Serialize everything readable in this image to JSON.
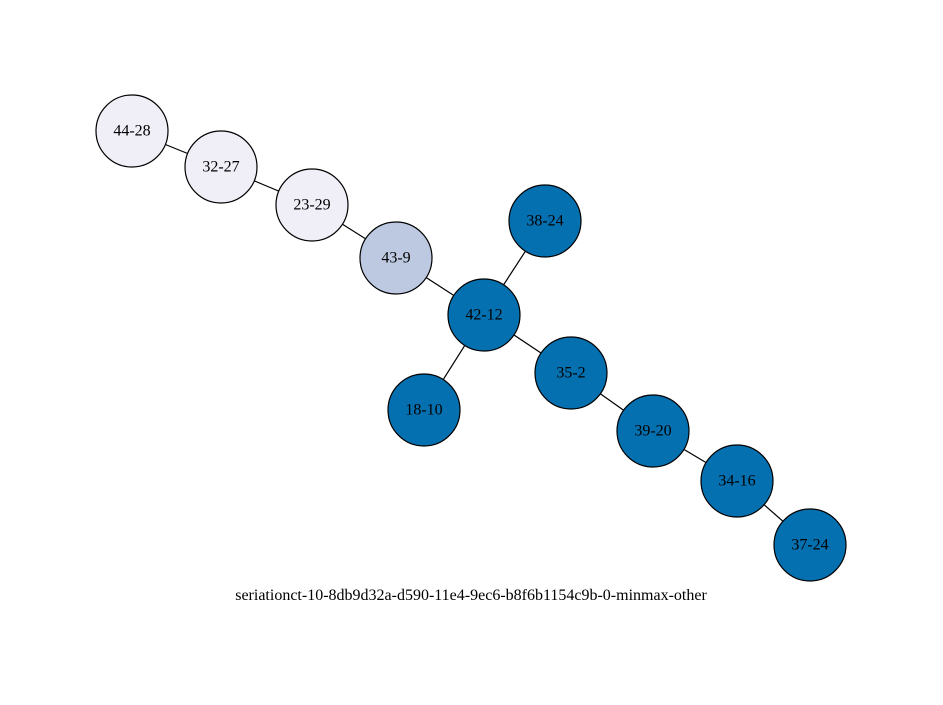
{
  "diagram": {
    "caption": "seriationct-10-8db9d32a-d590-11e4-9ec6-b8f6b1154c9b-0-minmax-other",
    "colors": {
      "light": "#f0eef6",
      "medium": "#bdc9e1",
      "dark": "#0570b0",
      "stroke": "#000000"
    },
    "nodes": [
      {
        "id": "44-28",
        "label": "44-28",
        "shade": "light"
      },
      {
        "id": "32-27",
        "label": "32-27",
        "shade": "light"
      },
      {
        "id": "23-29",
        "label": "23-29",
        "shade": "light"
      },
      {
        "id": "43-9",
        "label": "43-9",
        "shade": "medium"
      },
      {
        "id": "42-12",
        "label": "42-12",
        "shade": "dark"
      },
      {
        "id": "38-24",
        "label": "38-24",
        "shade": "dark"
      },
      {
        "id": "18-10",
        "label": "18-10",
        "shade": "dark"
      },
      {
        "id": "35-2",
        "label": "35-2",
        "shade": "dark"
      },
      {
        "id": "39-20",
        "label": "39-20",
        "shade": "dark"
      },
      {
        "id": "34-16",
        "label": "34-16",
        "shade": "dark"
      },
      {
        "id": "37-24",
        "label": "37-24",
        "shade": "dark"
      }
    ],
    "edges": [
      {
        "from": "44-28",
        "to": "32-27"
      },
      {
        "from": "32-27",
        "to": "23-29"
      },
      {
        "from": "23-29",
        "to": "43-9"
      },
      {
        "from": "43-9",
        "to": "42-12"
      },
      {
        "from": "42-12",
        "to": "38-24"
      },
      {
        "from": "42-12",
        "to": "18-10"
      },
      {
        "from": "42-12",
        "to": "35-2"
      },
      {
        "from": "35-2",
        "to": "39-20"
      },
      {
        "from": "39-20",
        "to": "34-16"
      },
      {
        "from": "34-16",
        "to": "37-24"
      }
    ]
  }
}
